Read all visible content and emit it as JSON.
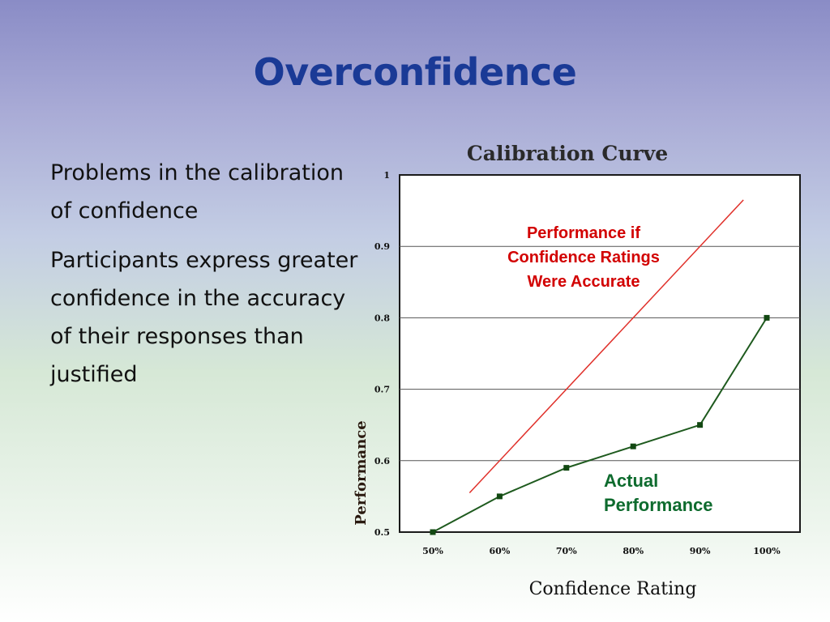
{
  "slide": {
    "title": "Overconfidence",
    "bullets": [
      "Problems in the calibration of confidence",
      "Participants express greater confidence in the accuracy of their responses than justified"
    ]
  },
  "chart_data": {
    "type": "line",
    "title": "Calibration Curve",
    "xlabel": "Confidence Rating",
    "ylabel": "Performance",
    "categories": [
      "50%",
      "60%",
      "70%",
      "80%",
      "90%",
      "100%"
    ],
    "y_ticks": [
      "0.5",
      "0.6",
      "0.7",
      "0.8",
      "0.9",
      "1"
    ],
    "ylim": [
      0.5,
      1.0
    ],
    "grid": true,
    "series": [
      {
        "name": "Actual Performance",
        "label_lines": [
          "Actual",
          "Performance"
        ],
        "color": "#1e5a1e",
        "values": [
          0.5,
          0.55,
          0.59,
          0.62,
          0.65,
          0.8
        ]
      },
      {
        "name": "Performance if Confidence Ratings Were Accurate",
        "label_lines": [
          "Performance if",
          "Confidence Ratings",
          "Were Accurate"
        ],
        "color": "#e0302a",
        "x": [
          0.555,
          0.965
        ],
        "values": [
          0.555,
          0.965
        ]
      }
    ]
  }
}
